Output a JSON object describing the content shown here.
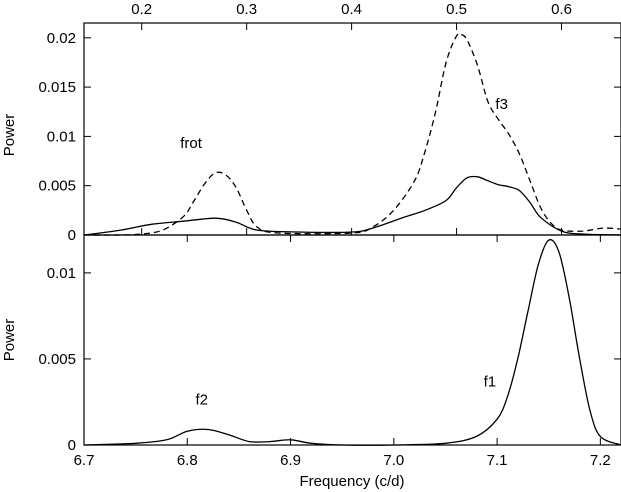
{
  "chart_data": [
    {
      "id": "top",
      "type": "line",
      "ylabel": "Power",
      "xlim": [
        0.145,
        0.6567
      ],
      "ylim": [
        0,
        0.0215
      ],
      "x_ticks": [
        "0.2",
        "0.3",
        "0.4",
        "0.5",
        "0.6"
      ],
      "x_tick_values": [
        0.2,
        0.3,
        0.4,
        0.5,
        0.6
      ],
      "y_ticks": [
        "0",
        "0.005",
        "0.01",
        "0.015",
        "0.02"
      ],
      "y_tick_values": [
        0,
        0.005,
        0.01,
        0.015,
        0.02
      ],
      "annotations": [
        {
          "text": "frot",
          "x": 0.247,
          "y": 0.0088
        },
        {
          "text": "f3",
          "x": 0.543,
          "y": 0.0128
        }
      ],
      "series": [
        {
          "style": "solid",
          "x": [
            0.145,
            0.18,
            0.21,
            0.24,
            0.27,
            0.29,
            0.31,
            0.35,
            0.4,
            0.42,
            0.45,
            0.47,
            0.49,
            0.5,
            0.51,
            0.52,
            0.53,
            0.54,
            0.55,
            0.56,
            0.57,
            0.58,
            0.6,
            0.62,
            0.6567
          ],
          "y": [
            0,
            0.0005,
            0.0011,
            0.0014,
            0.0017,
            0.0013,
            0.0005,
            0.0003,
            0.0003,
            0.0007,
            0.0018,
            0.0025,
            0.0035,
            0.0048,
            0.0058,
            0.0059,
            0.0055,
            0.0051,
            0.0049,
            0.0045,
            0.0033,
            0.0018,
            0.0004,
            0.0001,
            0
          ]
        },
        {
          "style": "dashed",
          "x": [
            0.145,
            0.18,
            0.2,
            0.22,
            0.24,
            0.25,
            0.26,
            0.27,
            0.28,
            0.29,
            0.3,
            0.31,
            0.33,
            0.4,
            0.42,
            0.44,
            0.46,
            0.47,
            0.48,
            0.49,
            0.5,
            0.505,
            0.51,
            0.52,
            0.53,
            0.54,
            0.55,
            0.56,
            0.57,
            0.58,
            0.59,
            0.6,
            0.62,
            0.64,
            0.6567
          ],
          "y": [
            0,
            0,
            0.0001,
            0.0005,
            0.0019,
            0.0035,
            0.0052,
            0.0063,
            0.0061,
            0.0048,
            0.0025,
            0.0008,
            0.0002,
            0.0002,
            0.0008,
            0.0025,
            0.0055,
            0.0085,
            0.0125,
            0.0175,
            0.0202,
            0.0203,
            0.0198,
            0.0172,
            0.0135,
            0.0117,
            0.0102,
            0.0082,
            0.0055,
            0.0028,
            0.0012,
            0.0005,
            0.0004,
            0.0007,
            0.0006
          ]
        }
      ]
    },
    {
      "id": "bottom",
      "type": "line",
      "xlabel": "Frequency (c/d)",
      "ylabel": "Power",
      "xlim": [
        6.7,
        7.22
      ],
      "ylim": [
        0,
        0.0122
      ],
      "x_ticks": [
        "6.7",
        "6.8",
        "6.9",
        "7.0",
        "7.1",
        "7.2"
      ],
      "x_tick_values": [
        6.7,
        6.8,
        6.9,
        7.0,
        7.1,
        7.2
      ],
      "y_ticks": [
        "0",
        "0.005",
        "0.01"
      ],
      "y_tick_values": [
        0,
        0.005,
        0.01
      ],
      "annotations": [
        {
          "text": "f2",
          "x": 6.814,
          "y": 0.00235
        },
        {
          "text": "f1",
          "x": 7.093,
          "y": 0.0034
        }
      ],
      "series": [
        {
          "style": "solid",
          "x": [
            6.7,
            6.75,
            6.78,
            6.8,
            6.82,
            6.84,
            6.86,
            6.88,
            6.9,
            6.92,
            6.95,
            7.0,
            7.05,
            7.08,
            7.1,
            7.11,
            7.12,
            7.13,
            7.14,
            7.15,
            7.16,
            7.17,
            7.18,
            7.19,
            7.2,
            7.22
          ],
          "y": [
            0,
            0.0001,
            0.0003,
            0.0008,
            0.0009,
            0.0006,
            0.0002,
            0.0002,
            0.0003,
            0.0001,
            0,
            0,
            0.0001,
            0.0005,
            0.0015,
            0.0028,
            0.005,
            0.0078,
            0.0105,
            0.0119,
            0.0112,
            0.0085,
            0.005,
            0.002,
            0.0005,
            0
          ]
        }
      ]
    }
  ]
}
